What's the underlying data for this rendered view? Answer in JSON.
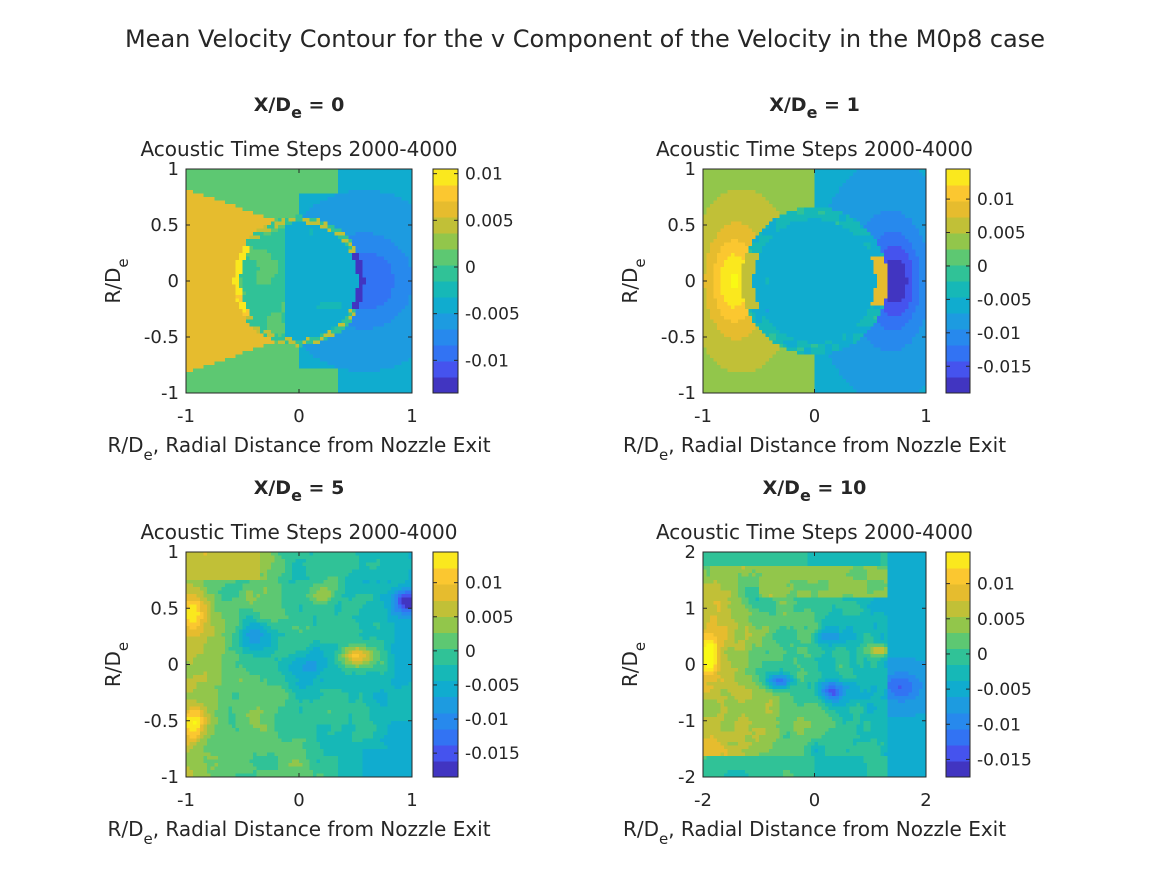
{
  "figure": {
    "title": "Mean Velocity Contour for the v Component of the Velocity in the M0p8 case"
  },
  "chart_data": [
    {
      "type": "heatmap",
      "title_main": "X/D",
      "title_sub": "e",
      "title_rest": " = 0",
      "subtitle": "Acoustic Time Steps 2000-4000",
      "xlabel_main": "R/D",
      "xlabel_sub": "e",
      "xlabel_rest": ", Radial Distance from Nozzle Exit",
      "ylabel_main": "R/D",
      "ylabel_sub": "e",
      "xlim": [
        -1,
        1
      ],
      "ylim": [
        -1,
        1
      ],
      "xticks": [
        -1,
        0,
        1
      ],
      "xtick_labels": [
        "-1",
        "0",
        "1"
      ],
      "yticks": [
        -1,
        -0.5,
        0,
        0.5,
        1
      ],
      "ytick_labels": [
        "-1",
        "-0.5",
        "0",
        "0.5",
        "1"
      ],
      "clim": [
        -0.0135,
        0.0105
      ],
      "colorbar_ticks": [
        -0.01,
        -0.005,
        0,
        0.005,
        0.01
      ],
      "colorbar_labels": [
        "-0.01",
        "-0.005",
        "0",
        "0.005",
        "0.01"
      ],
      "field": "v1"
    },
    {
      "type": "heatmap",
      "title_main": "X/D",
      "title_sub": "e",
      "title_rest": " = 1",
      "subtitle": "Acoustic Time Steps 2000-4000",
      "xlabel_main": "R/D",
      "xlabel_sub": "e",
      "xlabel_rest": ", Radial Distance from Nozzle Exit",
      "ylabel_main": "R/D",
      "ylabel_sub": "e",
      "xlim": [
        -1,
        1
      ],
      "ylim": [
        -1,
        1
      ],
      "xticks": [
        -1,
        0,
        1
      ],
      "xtick_labels": [
        "-1",
        "0",
        "1"
      ],
      "yticks": [
        -1,
        -0.5,
        0,
        0.5,
        1
      ],
      "ytick_labels": [
        "-1",
        "-0.5",
        "0",
        "0.5",
        "1"
      ],
      "clim": [
        -0.019,
        0.0145
      ],
      "colorbar_ticks": [
        -0.015,
        -0.01,
        -0.005,
        0,
        0.005,
        0.01
      ],
      "colorbar_labels": [
        "-0.015",
        "-0.01",
        "-0.005",
        "0",
        "0.005",
        "0.01"
      ],
      "field": "v2"
    },
    {
      "type": "heatmap",
      "title_main": "X/D",
      "title_sub": "e",
      "title_rest": " = 5",
      "subtitle": "Acoustic Time Steps 2000-4000",
      "xlabel_main": "R/D",
      "xlabel_sub": "e",
      "xlabel_rest": ", Radial Distance from Nozzle Exit",
      "ylabel_main": "R/D",
      "ylabel_sub": "e",
      "xlim": [
        -1,
        1
      ],
      "ylim": [
        -1,
        1
      ],
      "xticks": [
        -1,
        0,
        1
      ],
      "xtick_labels": [
        "-1",
        "0",
        "1"
      ],
      "yticks": [
        -1,
        -0.5,
        0,
        0.5,
        1
      ],
      "ytick_labels": [
        "-1",
        "-0.5",
        "0",
        "0.5",
        "1"
      ],
      "clim": [
        -0.0185,
        0.0145
      ],
      "colorbar_ticks": [
        -0.015,
        -0.01,
        -0.005,
        0,
        0.005,
        0.01
      ],
      "colorbar_labels": [
        "-0.015",
        "-0.01",
        "-0.005",
        "0",
        "0.005",
        "0.01"
      ],
      "field": "v3"
    },
    {
      "type": "heatmap",
      "title_main": "X/D",
      "title_sub": "e",
      "title_rest": " = 10",
      "subtitle": "Acoustic Time Steps 2000-4000",
      "xlabel_main": "R/D",
      "xlabel_sub": "e",
      "xlabel_rest": ", Radial Distance from Nozzle Exit",
      "ylabel_main": "R/D",
      "ylabel_sub": "e",
      "xlim": [
        -2,
        2
      ],
      "ylim": [
        -2,
        2
      ],
      "xticks": [
        -2,
        0,
        2
      ],
      "xtick_labels": [
        "-2",
        "0",
        "2"
      ],
      "yticks": [
        -2,
        -1,
        0,
        1,
        2
      ],
      "ytick_labels": [
        "-2",
        "-1",
        "0",
        "1",
        "2"
      ],
      "clim": [
        -0.0175,
        0.0145
      ],
      "colorbar_ticks": [
        -0.015,
        -0.01,
        -0.005,
        0,
        0.005,
        0.01
      ],
      "colorbar_labels": [
        "-0.015",
        "-0.01",
        "-0.005",
        "0",
        "0.005",
        "0.01"
      ],
      "field": "v4"
    }
  ]
}
